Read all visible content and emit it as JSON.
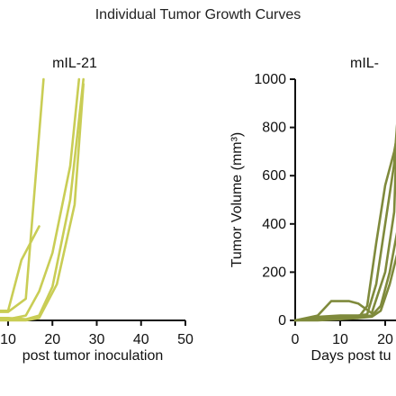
{
  "figure": {
    "title": "Individual Tumor Growth Curves"
  },
  "chart_data": [
    {
      "type": "line",
      "title": "mIL-21",
      "xlabel": "post tumor inoculation",
      "ylabel": "",
      "xlim": [
        0,
        50
      ],
      "ylim": [
        0,
        1000
      ],
      "xticks": [
        10,
        20,
        30,
        40,
        50
      ],
      "grid": false,
      "series_color": "#c9cd55",
      "series": [
        {
          "x": [
            0,
            10,
            14,
            18
          ],
          "y": [
            35,
            35,
            90,
            1000
          ]
        },
        {
          "x": [
            0,
            10,
            13,
            17
          ],
          "y": [
            40,
            40,
            250,
            390
          ]
        },
        {
          "x": [
            0,
            10,
            14,
            17,
            20,
            24,
            27
          ],
          "y": [
            10,
            10,
            5,
            20,
            140,
            500,
            1000
          ]
        },
        {
          "x": [
            0,
            10,
            14,
            17,
            20,
            24,
            26
          ],
          "y": [
            5,
            5,
            20,
            120,
            280,
            640,
            1000
          ]
        },
        {
          "x": [
            0,
            10,
            14,
            17,
            21,
            25,
            27
          ],
          "y": [
            0,
            0,
            0,
            10,
            150,
            480,
            980
          ]
        }
      ]
    },
    {
      "type": "line",
      "title": "mIL-",
      "xlabel": "Days post tu",
      "ylabel": "Tumor Volume (mm³)",
      "xlim": [
        0,
        25
      ],
      "ylim": [
        0,
        1000
      ],
      "xticks": [
        0,
        10,
        20
      ],
      "yticks": [
        0,
        200,
        400,
        600,
        800,
        1000
      ],
      "grid": false,
      "series_color": "#7f8a3c",
      "series": [
        {
          "x": [
            0,
            5,
            8,
            12,
            14,
            17,
            20,
            22,
            23
          ],
          "y": [
            0,
            20,
            80,
            80,
            70,
            30,
            200,
            450,
            1000
          ]
        },
        {
          "x": [
            0,
            5,
            10,
            14,
            16,
            18,
            20,
            22,
            23
          ],
          "y": [
            0,
            15,
            20,
            20,
            25,
            150,
            400,
            650,
            900
          ]
        },
        {
          "x": [
            0,
            5,
            10,
            14,
            17,
            19,
            21,
            23
          ],
          "y": [
            0,
            10,
            15,
            15,
            20,
            60,
            200,
            400
          ]
        },
        {
          "x": [
            0,
            5,
            10,
            14,
            17,
            19,
            21,
            23
          ],
          "y": [
            0,
            5,
            10,
            10,
            15,
            40,
            150,
            300
          ]
        },
        {
          "x": [
            0,
            5,
            10,
            14,
            16,
            18,
            20,
            22,
            23
          ],
          "y": [
            0,
            0,
            5,
            10,
            60,
            320,
            560,
            700,
            800
          ]
        }
      ]
    }
  ]
}
